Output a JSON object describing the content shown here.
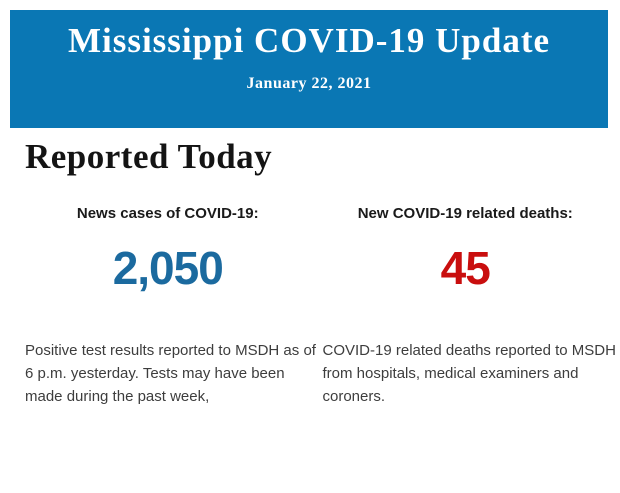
{
  "banner": {
    "title": "Mississippi COVID-19 Update",
    "date": "January 22, 2021",
    "background_color": "#0a77b4",
    "text_color": "#ffffff"
  },
  "section": {
    "heading": "Reported Today"
  },
  "stats": [
    {
      "label": "News cases of COVID-19:",
      "value": "2,050",
      "value_color": "#1b6a9f",
      "description": "Positive test results reported to MSDH as of 6 p.m. yesterday. Tests may have been made during the past week,"
    },
    {
      "label": "New COVID-19 related deaths:",
      "value": "45",
      "value_color": "#c90e0e",
      "description": "COVID-19 related deaths reported to MSDH from hospitals, medical examiners and coroners."
    }
  ]
}
